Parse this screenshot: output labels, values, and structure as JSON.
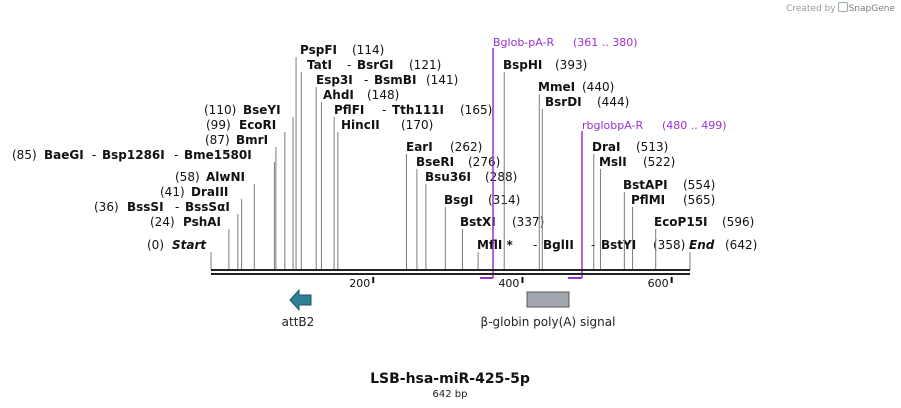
{
  "credit": {
    "prefix": "Created by",
    "brand": "SnapGene"
  },
  "plasmid": {
    "name": "LSB-hsa-miR-425-5p",
    "length_label": "642 bp",
    "length": 642
  },
  "ruler": {
    "ticks": [
      200,
      400,
      600
    ]
  },
  "sites": [
    {
      "id": "start",
      "pos": "(0)",
      "names": [
        "Start"
      ],
      "italic": true,
      "loc": 0
    },
    {
      "id": "pshai",
      "pos": "(24)",
      "names": [
        "PshAI"
      ],
      "loc": 24
    },
    {
      "id": "bsssi",
      "pos": "(36)",
      "names": [
        "BssSI",
        "BssSαI"
      ],
      "loc": 36
    },
    {
      "id": "draiii",
      "pos": "(41)",
      "names": [
        "DraIII"
      ],
      "loc": 41
    },
    {
      "id": "alwni",
      "pos": "(58)",
      "names": [
        "AlwNI"
      ],
      "loc": 58
    },
    {
      "id": "baegi",
      "pos": "(85)",
      "names": [
        "BaeGI",
        "Bsp1286I",
        "Bme1580I"
      ],
      "loc": 85
    },
    {
      "id": "bmri",
      "pos": "(87)",
      "names": [
        "BmrI"
      ],
      "loc": 87
    },
    {
      "id": "ecori",
      "pos": "(99)",
      "names": [
        "EcoRI"
      ],
      "loc": 99
    },
    {
      "id": "bseyi",
      "pos": "(110)",
      "names": [
        "BseYI"
      ],
      "loc": 110
    },
    {
      "id": "pspfi",
      "pos": "(114)",
      "names": [
        "PspFI"
      ],
      "loc": 114
    },
    {
      "id": "tati",
      "pos": "(121)",
      "names": [
        "TatI",
        "BsrGI"
      ],
      "loc": 121
    },
    {
      "id": "esp3i",
      "pos": "(141)",
      "names": [
        "Esp3I",
        "BsmBI"
      ],
      "loc": 141
    },
    {
      "id": "ahdi",
      "pos": "(148)",
      "names": [
        "AhdI"
      ],
      "loc": 148
    },
    {
      "id": "pflfi",
      "pos": "(165)",
      "names": [
        "PflFI",
        "Tth111I"
      ],
      "loc": 165
    },
    {
      "id": "hincii",
      "pos": "(170)",
      "names": [
        "HincII"
      ],
      "loc": 170
    },
    {
      "id": "eari",
      "pos": "(262)",
      "names": [
        "EarI"
      ],
      "loc": 262
    },
    {
      "id": "bseri",
      "pos": "(276)",
      "names": [
        "BseRI"
      ],
      "loc": 276
    },
    {
      "id": "bsu36i",
      "pos": "(288)",
      "names": [
        "Bsu36I"
      ],
      "loc": 288
    },
    {
      "id": "bsgi",
      "pos": "(314)",
      "names": [
        "BsgI"
      ],
      "loc": 314
    },
    {
      "id": "bstxi",
      "pos": "(337)",
      "names": [
        "BstXI"
      ],
      "loc": 337
    },
    {
      "id": "bsphi",
      "pos": "(393)",
      "names": [
        "BspHI"
      ],
      "loc": 393
    },
    {
      "id": "mfli",
      "pos": "",
      "names": [
        "MflI *",
        "BglII",
        "BstYI"
      ],
      "post": "(358)",
      "loc": 358
    },
    {
      "id": "mmei",
      "pos": "(440)",
      "names": [
        "MmeI"
      ],
      "loc": 440
    },
    {
      "id": "bsrdi",
      "pos": "(444)",
      "names": [
        "BsrDI"
      ],
      "loc": 444
    },
    {
      "id": "drai",
      "pos": "(513)",
      "names": [
        "DraI"
      ],
      "loc": 513
    },
    {
      "id": "msli",
      "pos": "(522)",
      "names": [
        "MslI"
      ],
      "loc": 522
    },
    {
      "id": "bstapi",
      "pos": "(554)",
      "names": [
        "BstAPI"
      ],
      "loc": 554
    },
    {
      "id": "pflmi",
      "pos": "(565)",
      "names": [
        "PflMI"
      ],
      "loc": 565
    },
    {
      "id": "ecop15i",
      "pos": "(596)",
      "names": [
        "EcoP15I"
      ],
      "loc": 596
    },
    {
      "id": "end",
      "pos": "(642)",
      "names": [
        "End"
      ],
      "italic": true,
      "loc": 642
    }
  ],
  "primers": [
    {
      "id": "bglob",
      "name": "Bglob-pA-R",
      "range": "(361 .. 380)",
      "start": 361,
      "end": 380,
      "color": "#9b30d0"
    },
    {
      "id": "rbglob",
      "name": "rbglobpA-R",
      "range": "(480 .. 499)",
      "start": 480,
      "end": 499,
      "color": "#9b30d0"
    }
  ],
  "features": [
    {
      "id": "attb2",
      "name": "attB2",
      "type": "arrow-left",
      "start": 111,
      "end": 136,
      "color": "#2f7f95"
    },
    {
      "id": "polya",
      "name": "β-globin poly(A) signal",
      "type": "box",
      "start": 424,
      "end": 479,
      "color": "#a3a8ae"
    }
  ]
}
